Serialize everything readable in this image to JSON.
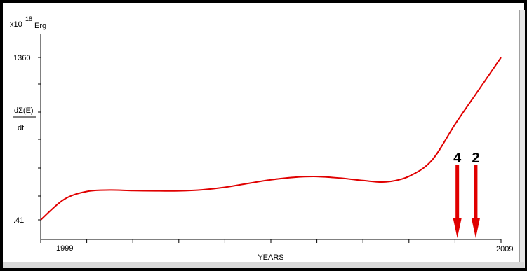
{
  "chart_data": {
    "type": "line",
    "unit_prefix": "x10",
    "unit_exponent": "18",
    "unit_suffix": "Erg",
    "ylabel_numerator": "dΣ(E)",
    "ylabel_denominator": "dt",
    "xlabel": "YEARS",
    "xlim": [
      1999,
      2009
    ],
    "ylim": [
      0.41,
      1360
    ],
    "x_ticks": [
      {
        "value": 1999,
        "label": "1999"
      },
      {
        "value": 2009,
        "label": "2009"
      }
    ],
    "y_ticks": [
      {
        "value": 0.41,
        "label": ".41"
      },
      {
        "value": 1360,
        "label": "1360"
      }
    ],
    "series": [
      {
        "color": "#e00000",
        "x": [
          1999.0,
          1999.5,
          2000.0,
          2000.5,
          2001.0,
          2001.5,
          2002.0,
          2002.5,
          2003.0,
          2003.5,
          2004.0,
          2004.5,
          2005.0,
          2005.5,
          2006.0,
          2006.5,
          2007.0,
          2007.5,
          2008.0,
          2008.5,
          2009.0
        ],
        "y": [
          0.41,
          170,
          238,
          250,
          245,
          243,
          243,
          252,
          273,
          305,
          336,
          357,
          363,
          350,
          330,
          318,
          365,
          500,
          800,
          1080,
          1360
        ]
      }
    ],
    "markers": [
      {
        "label": "4",
        "x": 2008.05,
        "color": "#e00000"
      },
      {
        "label": "2",
        "x": 2008.45,
        "color": "#e00000"
      }
    ]
  }
}
